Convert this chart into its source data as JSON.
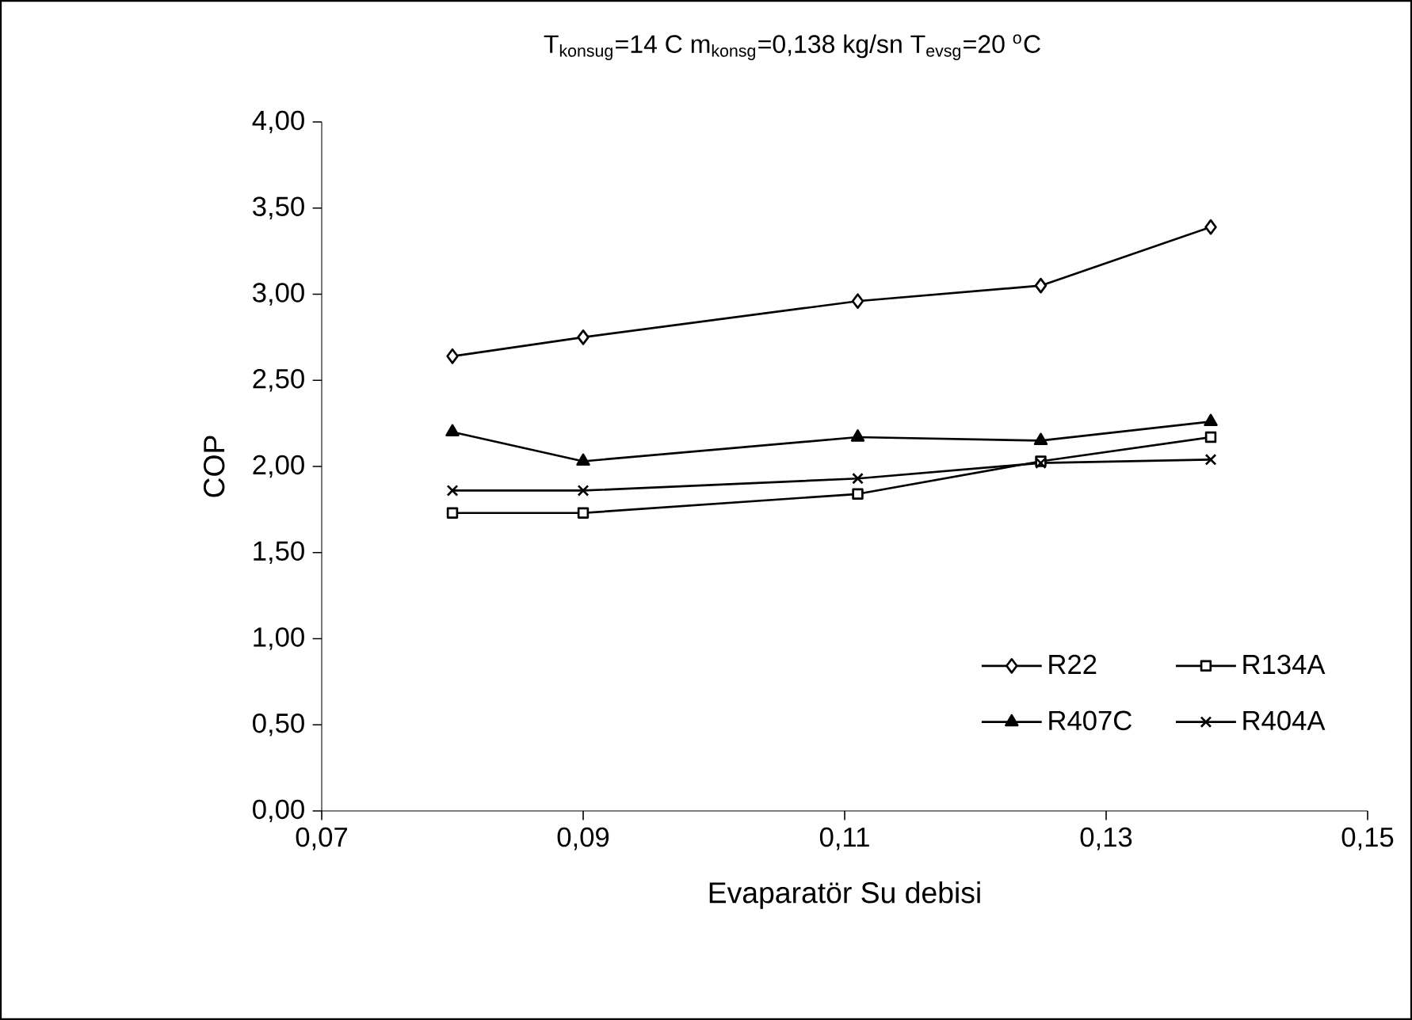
{
  "chart_data": {
    "type": "line",
    "title": "T$_{konsug}$=14 C m$_{konsg}$=0,138 kg/sn T$_{evsg}$=20 $^{o}$C",
    "xlabel": "Evaparatör Su debisi",
    "ylabel": "COP",
    "x": [
      0.08,
      0.09,
      0.111,
      0.125,
      0.138
    ],
    "series": [
      {
        "name": "R22",
        "color": "#000000",
        "marker": "diamond",
        "values": [
          2.64,
          2.75,
          2.96,
          3.05,
          3.39
        ]
      },
      {
        "name": "R134A",
        "color": "#000000",
        "marker": "square",
        "values": [
          1.73,
          1.73,
          1.84,
          2.03,
          2.17
        ]
      },
      {
        "name": "R407C",
        "color": "#000000",
        "marker": "triangle",
        "values": [
          2.2,
          2.03,
          2.17,
          2.15,
          2.26
        ]
      },
      {
        "name": "R404A",
        "color": "#000000",
        "marker": "cross",
        "values": [
          1.86,
          1.86,
          1.93,
          2.02,
          2.04
        ]
      }
    ],
    "xlim": [
      0.07,
      0.15
    ],
    "xticks": [
      {
        "value": 0.07,
        "label": "0,07"
      },
      {
        "value": 0.09,
        "label": "0,09"
      },
      {
        "value": 0.11,
        "label": "0,11"
      },
      {
        "value": 0.13,
        "label": "0,13"
      },
      {
        "value": 0.15,
        "label": "0,15"
      }
    ],
    "ylim": [
      0,
      4
    ],
    "yticks": [
      {
        "value": 0,
        "label": "0,00"
      },
      {
        "value": 0.5,
        "label": "0,50"
      },
      {
        "value": 1,
        "label": "1,00"
      },
      {
        "value": 1.5,
        "label": "1,50"
      },
      {
        "value": 2,
        "label": "2,00"
      },
      {
        "value": 2.5,
        "label": "2,50"
      },
      {
        "value": 3,
        "label": "3,00"
      },
      {
        "value": 3.5,
        "label": "3,50"
      },
      {
        "value": 4,
        "label": "4,00"
      }
    ],
    "grid": false,
    "legend": "bottom right",
    "line_style": "solid"
  }
}
